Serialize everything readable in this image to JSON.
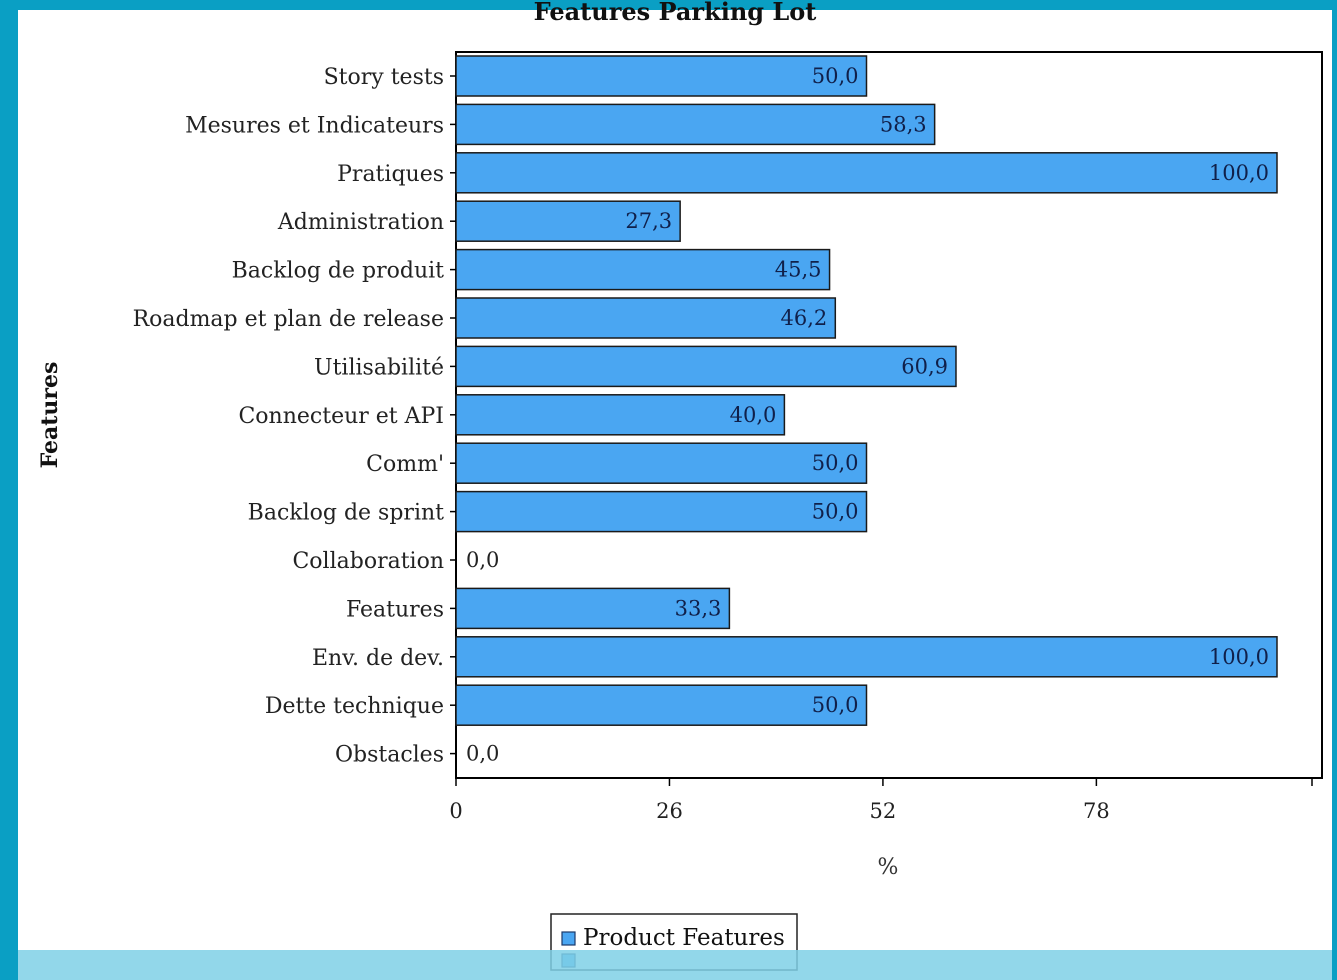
{
  "chart_data": {
    "type": "bar",
    "orientation": "horizontal",
    "title": "Features Parking Lot",
    "xlabel": "%",
    "ylabel": "Features",
    "xlim": [
      0,
      100
    ],
    "x_ticks": [
      "0",
      "26",
      "52",
      "78"
    ],
    "grid": false,
    "legend_position": "bottom",
    "bar_color": "#4aa6f2",
    "categories": [
      "Story tests",
      "Mesures et Indicateurs",
      "Pratiques",
      "Administration",
      "Backlog de produit",
      "Roadmap et plan de release",
      "Utilisabilité",
      "Connecteur et API",
      "Comm'",
      "Backlog de sprint",
      "Collaboration",
      "Features",
      "Env. de dev.",
      "Dette technique",
      "Obstacles"
    ],
    "series": [
      {
        "name": "Product Features",
        "values": [
          50.0,
          58.3,
          100.0,
          27.3,
          45.5,
          46.2,
          60.9,
          40.0,
          50.0,
          50.0,
          0.0,
          33.3,
          100.0,
          50.0,
          0.0
        ],
        "labels": [
          "50,0",
          "58,3",
          "100,0",
          "27,3",
          "45,5",
          "46,2",
          "60,9",
          "40,0",
          "50,0",
          "50,0",
          "0,0",
          "33,3",
          "100,0",
          "50,0",
          "0,0"
        ]
      }
    ]
  }
}
